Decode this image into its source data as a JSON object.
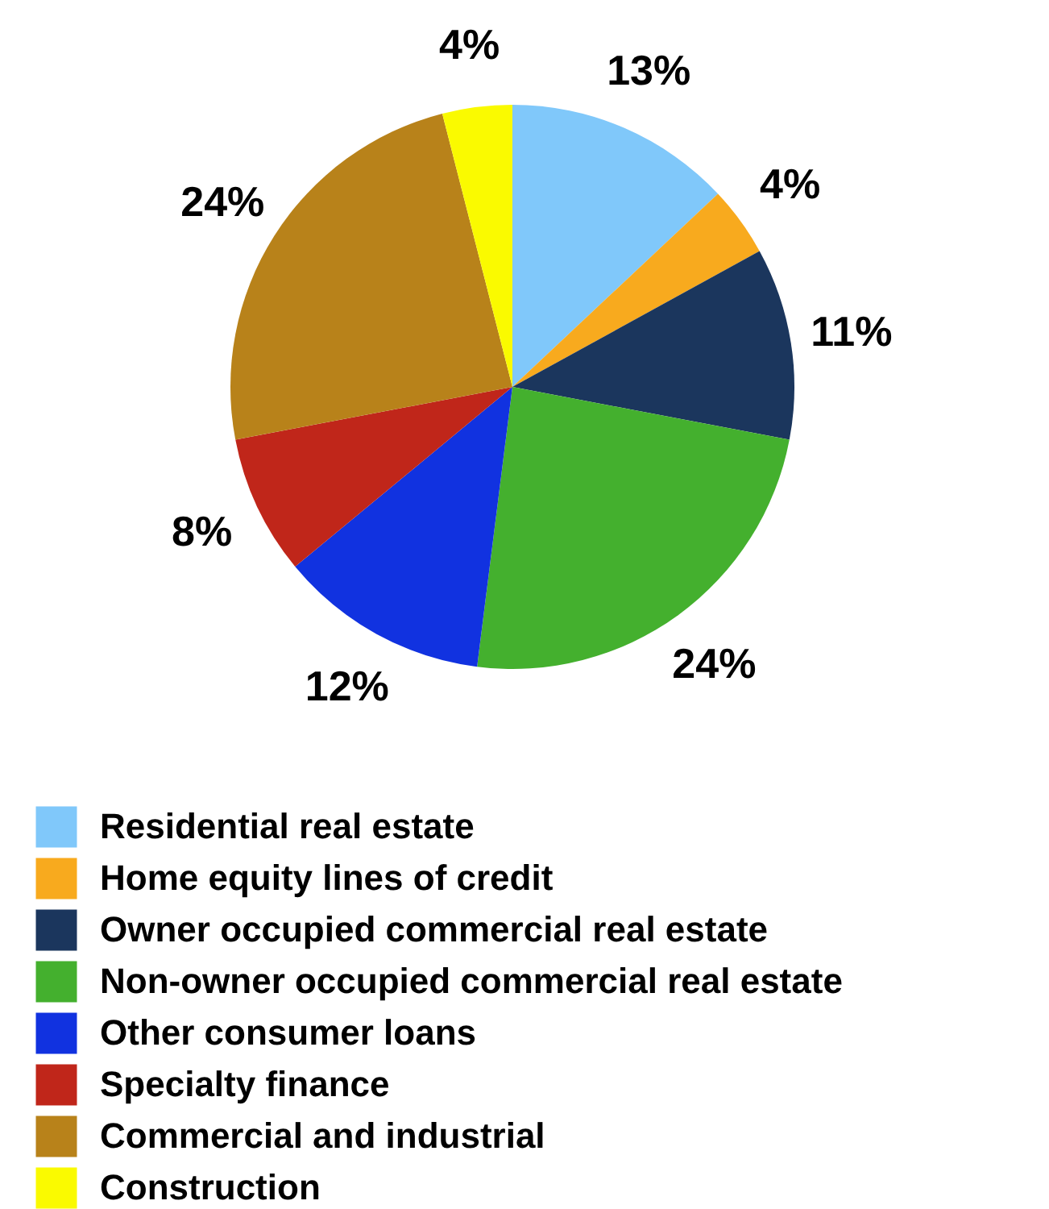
{
  "chart_data": {
    "type": "pie",
    "categories": [
      "Residential real estate",
      "Home equity lines of credit",
      "Owner occupied commercial real estate",
      "Non-owner occupied commercial real estate",
      "Other consumer loans",
      "Specialty finance",
      "Commercial and industrial",
      "Construction"
    ],
    "values": [
      13,
      4,
      11,
      24,
      12,
      8,
      24,
      4
    ],
    "value_labels": [
      "13%",
      "4%",
      "11%",
      "24%",
      "12%",
      "8%",
      "24%",
      "4%"
    ],
    "colors": [
      "#80c8fa",
      "#f8aa1e",
      "#1b365d",
      "#44b02e",
      "#1132e0",
      "#c0261a",
      "#b8821a",
      "#fafa00"
    ],
    "legend": "bottom"
  }
}
